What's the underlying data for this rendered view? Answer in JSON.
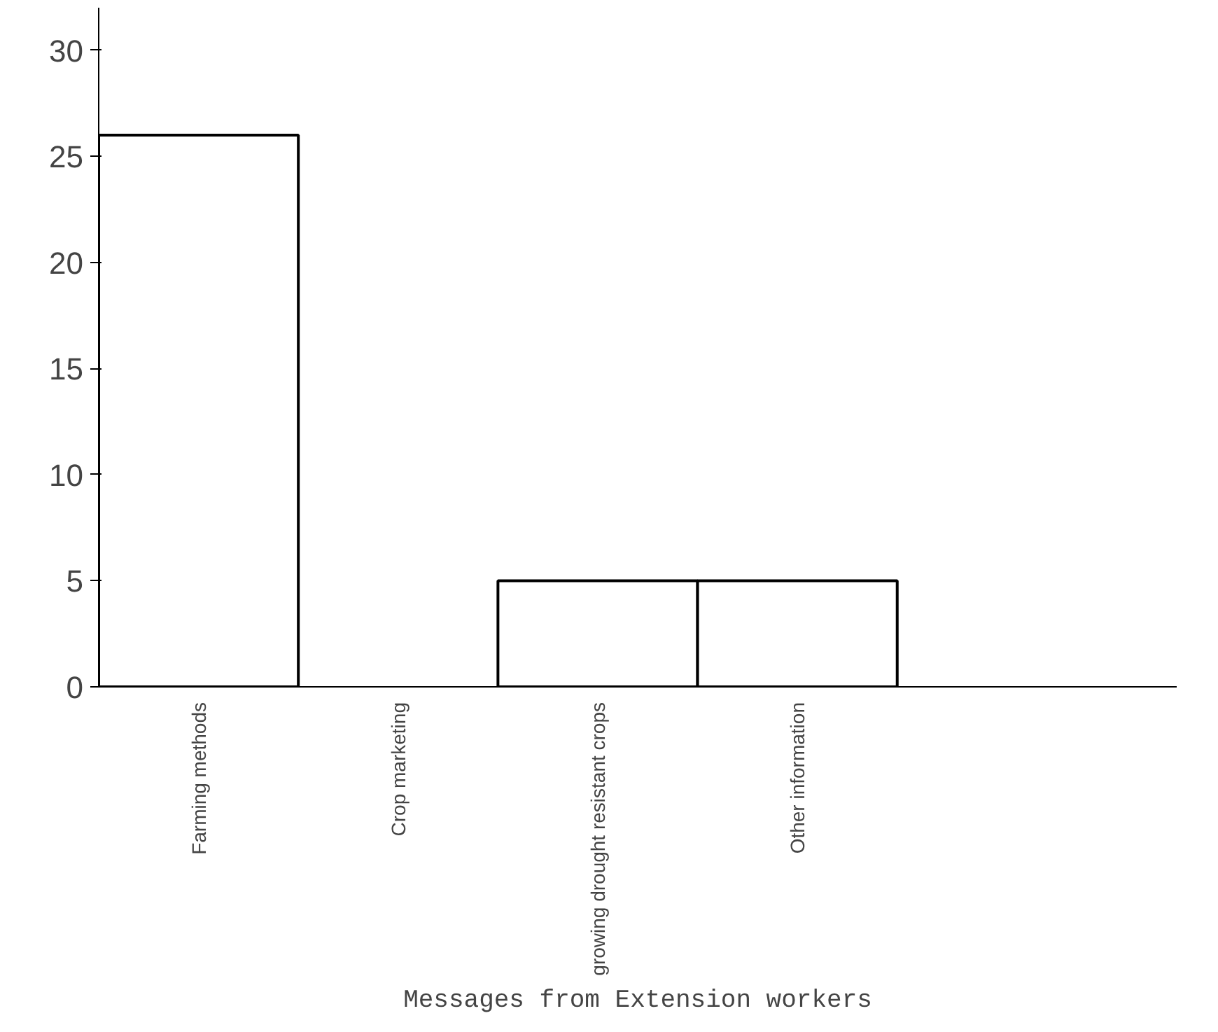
{
  "chart_data": {
    "type": "bar",
    "xlabel": "Messages from Extension workers",
    "categories": [
      "Farming methods",
      "Crop marketing",
      "growing drought resistant crops",
      "Other information"
    ],
    "values": [
      26,
      0,
      5,
      5
    ],
    "color": "#ffffff",
    "ylim": [
      0,
      32
    ],
    "yticks": [
      0,
      5,
      10,
      15,
      20,
      25,
      30
    ],
    "grid": false
  }
}
